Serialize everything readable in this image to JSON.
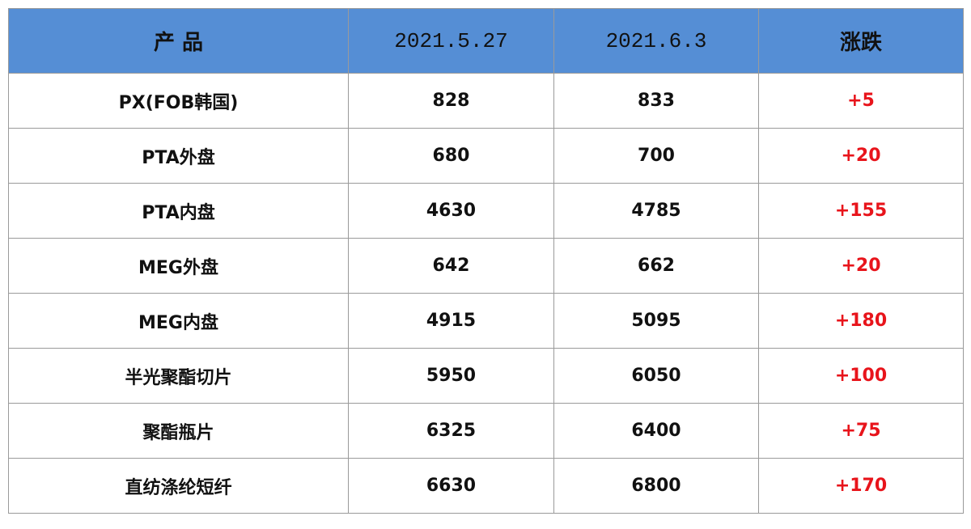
{
  "table": {
    "headers": [
      "产 品",
      "2021.5.27",
      "2021.6.3",
      "涨跌"
    ],
    "rows": [
      [
        "PX(FOB韩国)",
        "828",
        "833",
        "+5"
      ],
      [
        "PTA外盘",
        "680",
        "700",
        "+20"
      ],
      [
        "PTA内盘",
        "4630",
        "4785",
        "+155"
      ],
      [
        "MEG外盘",
        "642",
        "662",
        "+20"
      ],
      [
        "MEG内盘",
        "4915",
        "5095",
        "+180"
      ],
      [
        "半光聚酯切片",
        "5950",
        "6050",
        "+100"
      ],
      [
        "聚酯瓶片",
        "6325",
        "6400",
        "+75"
      ],
      [
        "直纺涤纶短纤",
        "6630",
        "6800",
        "+170"
      ]
    ]
  }
}
